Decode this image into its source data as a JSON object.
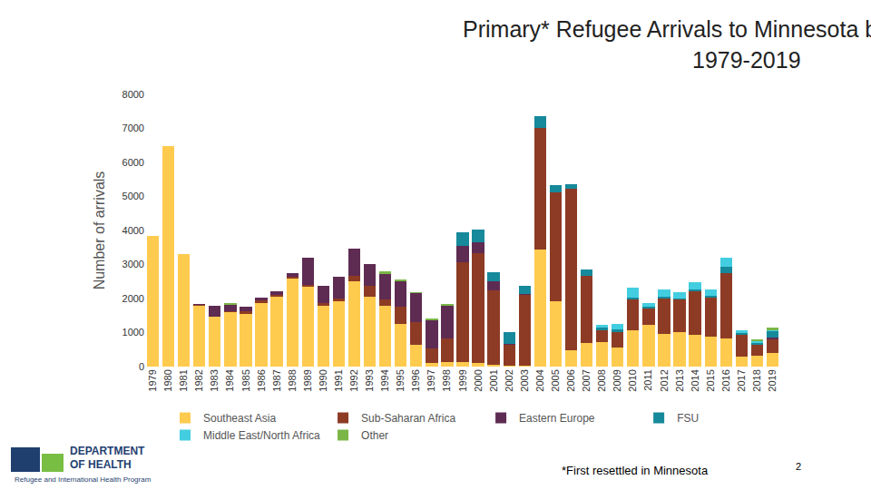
{
  "chart_data": {
    "type": "bar",
    "title": "Primary* Refugee Arrivals to Minnesota by Region of World",
    "subtitle": "1979-2019",
    "y_label": "Number of arrivals",
    "annotations": [
      "DEPARTMENT",
      "OF HEALTH",
      "Refugee and International Health Program",
      "*First resettled in Minnesota",
      "2"
    ],
    "stacked": true,
    "grid": false,
    "legend": "bottom",
    "ylim": [
      0,
      8000
    ],
    "yticks": [
      0,
      1000,
      2000,
      3000,
      4000,
      5000,
      6000,
      7000,
      8000
    ],
    "categories": [
      "1979",
      "1980",
      "1981",
      "1982",
      "1983",
      "1984",
      "1985",
      "1986",
      "1987",
      "1988",
      "1989",
      "1990",
      "1991",
      "1992",
      "1993",
      "1994",
      "1995",
      "1996",
      "1997",
      "1998",
      "1999",
      "2000",
      "2001",
      "2002",
      "2003",
      "2004",
      "2005",
      "2006",
      "2007",
      "2008",
      "2009",
      "2010",
      "2011",
      "2012",
      "2013",
      "2014",
      "2015",
      "2016",
      "2017",
      "2018",
      "2019"
    ],
    "series": [
      {
        "name": "Southeast Asia",
        "color": "#FFCB4F",
        "values": [
          3850,
          6480,
          3300,
          1790,
          1460,
          1600,
          1560,
          1880,
          2050,
          2600,
          2350,
          1800,
          1920,
          2520,
          2050,
          1800,
          1260,
          650,
          110,
          130,
          130,
          100,
          50,
          20,
          20,
          3450,
          1930,
          470,
          700,
          730,
          570,
          1080,
          1230,
          970,
          1010,
          930,
          870,
          830,
          290,
          330,
          400
        ]
      },
      {
        "name": "Sub-Saharan Africa",
        "color": "#8E3B25",
        "values": [
          0,
          0,
          0,
          20,
          20,
          40,
          60,
          80,
          60,
          50,
          60,
          60,
          70,
          150,
          330,
          180,
          500,
          650,
          420,
          700,
          2950,
          3230,
          2200,
          610,
          2090,
          3570,
          3200,
          4750,
          1980,
          330,
          450,
          900,
          470,
          1020,
          960,
          1280,
          1150,
          1920,
          650,
          300,
          400
        ]
      },
      {
        "name": "Eastern Europe",
        "color": "#5E2B52",
        "values": [
          0,
          0,
          0,
          40,
          300,
          170,
          130,
          70,
          100,
          100,
          800,
          520,
          660,
          810,
          640,
          740,
          760,
          860,
          830,
          950,
          480,
          320,
          260,
          50,
          20,
          0,
          0,
          0,
          0,
          0,
          0,
          0,
          0,
          0,
          0,
          0,
          0,
          0,
          0,
          0,
          60
        ]
      },
      {
        "name": "FSU",
        "color": "#16899A",
        "values": [
          0,
          0,
          0,
          0,
          0,
          0,
          0,
          0,
          0,
          0,
          0,
          0,
          0,
          0,
          0,
          0,
          0,
          0,
          0,
          0,
          380,
          370,
          270,
          330,
          250,
          330,
          200,
          130,
          180,
          80,
          80,
          60,
          60,
          60,
          40,
          70,
          70,
          180,
          60,
          70,
          180
        ]
      },
      {
        "name": "Middle East/North Africa",
        "color": "#43CDE0",
        "values": [
          0,
          0,
          0,
          0,
          0,
          0,
          0,
          0,
          0,
          0,
          0,
          0,
          0,
          0,
          0,
          0,
          0,
          0,
          0,
          0,
          0,
          0,
          0,
          0,
          0,
          0,
          0,
          0,
          0,
          80,
          150,
          280,
          100,
          220,
          180,
          200,
          180,
          280,
          60,
          40,
          40
        ]
      },
      {
        "name": "Other",
        "color": "#7AB648",
        "values": [
          0,
          0,
          0,
          0,
          0,
          60,
          0,
          0,
          0,
          0,
          0,
          0,
          0,
          0,
          0,
          80,
          40,
          40,
          50,
          50,
          0,
          0,
          0,
          0,
          0,
          0,
          0,
          0,
          0,
          0,
          0,
          0,
          0,
          0,
          0,
          0,
          0,
          0,
          0,
          60,
          70
        ]
      }
    ]
  }
}
